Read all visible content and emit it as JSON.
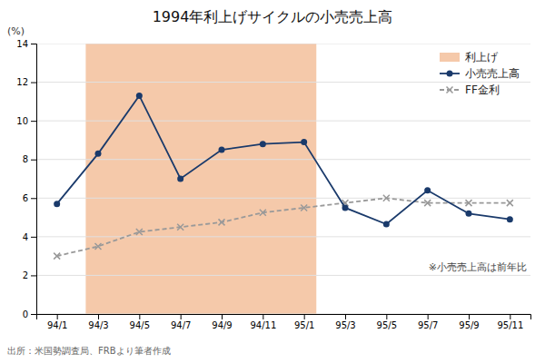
{
  "chart_data": {
    "type": "line",
    "title": "1994年利上げサイクルの小売売上高",
    "y_label": "(%)",
    "note": "※小売売上高は前年比",
    "source": "出所：米国勢調査局、FRBより筆者作成",
    "categories": [
      "94/1",
      "94/3",
      "94/5",
      "94/7",
      "94/9",
      "94/11",
      "95/1",
      "95/3",
      "95/5",
      "95/7",
      "95/9",
      "95/11"
    ],
    "series": [
      {
        "name": "小売売上高",
        "color": "#1a3a6b",
        "marker": "circle",
        "line_style": "solid",
        "values": [
          5.7,
          8.3,
          11.3,
          7.0,
          8.5,
          8.8,
          8.9,
          5.5,
          4.65,
          6.4,
          5.2,
          4.9
        ]
      },
      {
        "name": "FF金利",
        "color": "#999999",
        "marker": "x",
        "line_style": "dashed",
        "values": [
          3.0,
          3.5,
          4.25,
          4.5,
          4.75,
          5.25,
          5.5,
          5.75,
          6.0,
          5.75,
          5.75,
          5.75
        ]
      }
    ],
    "shading": {
      "label": "利上げ",
      "start": 0.7,
      "end": 6.3,
      "color": "#f5c9aa"
    },
    "ylim": [
      0,
      14
    ],
    "yticks": [
      0,
      2,
      4,
      6,
      8,
      10,
      12,
      14
    ],
    "grid": true,
    "legend": "upper right"
  }
}
